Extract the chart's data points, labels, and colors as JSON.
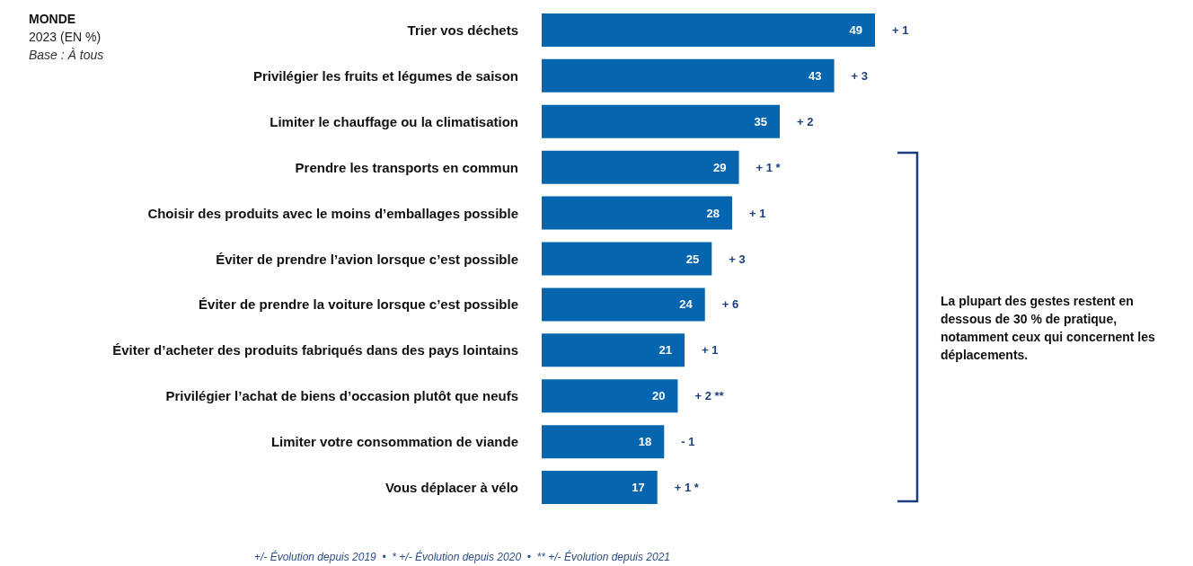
{
  "chart_data": {
    "type": "bar",
    "orientation": "horizontal",
    "title": "MONDE",
    "subtitle": "2023 (EN %)",
    "categories": [
      "Trier vos déchets",
      "Privilégier les fruits et légumes de saison",
      "Limiter le chauffage ou la climatisation",
      "Prendre les transports en commun",
      "Choisir des produits avec le moins d’emballages possible",
      "Éviter de prendre l’avion lorsque c’est possible",
      "Éviter de prendre la voiture lorsque c’est possible",
      "Éviter d’acheter des produits fabriqués dans des pays lointains",
      "Privilégier l’achat de biens d’occasion plutôt que neufs",
      "Limiter votre consommation de viande",
      "Vous déplacer à vélo"
    ],
    "values": [
      49,
      43,
      35,
      29,
      28,
      25,
      24,
      21,
      20,
      18,
      17
    ],
    "color": "#0565ae",
    "data_labels": true,
    "annotations": [
      "Base : À tous",
      "La plupart des gestes restent en dessous de 30 % de pratique, notamment ceux qui concernent les déplacements.",
      "+/- Évolution depuis 2019  •  * +/- Évolution depuis 2020  •  ** +/- Évolution depuis 2021",
      {
        "text": "+ 1",
        "x": 49,
        "y": "Trier vos déchets"
      },
      {
        "text": "+ 3",
        "x": 43,
        "y": "Privilégier les fruits et légumes de saison"
      },
      {
        "text": "+ 2",
        "x": 35,
        "y": "Limiter le chauffage ou la climatisation"
      },
      {
        "text": "+ 1 *",
        "x": 29,
        "y": "Prendre les transports en commun"
      },
      {
        "text": "+ 1",
        "x": 28,
        "y": "Choisir des produits avec le moins d’emballages possible"
      },
      {
        "text": "+ 3",
        "x": 25,
        "y": "Éviter de prendre l’avion lorsque c’est possible"
      },
      {
        "text": "+ 6",
        "x": 24,
        "y": "Éviter de prendre la voiture lorsque c’est possible"
      },
      {
        "text": "+ 1",
        "x": 21,
        "y": "Éviter d’acheter des produits fabriqués dans des pays lointains"
      },
      {
        "text": "+ 2 **",
        "x": 20,
        "y": "Privilégier l’achat de biens d’occasion plutôt que neufs"
      },
      {
        "text": "- 1",
        "x": 18,
        "y": "Limiter votre consommation de viande"
      },
      {
        "text": "+ 1 *",
        "x": 17,
        "y": "Vous déplacer à vélo"
      }
    ]
  }
}
